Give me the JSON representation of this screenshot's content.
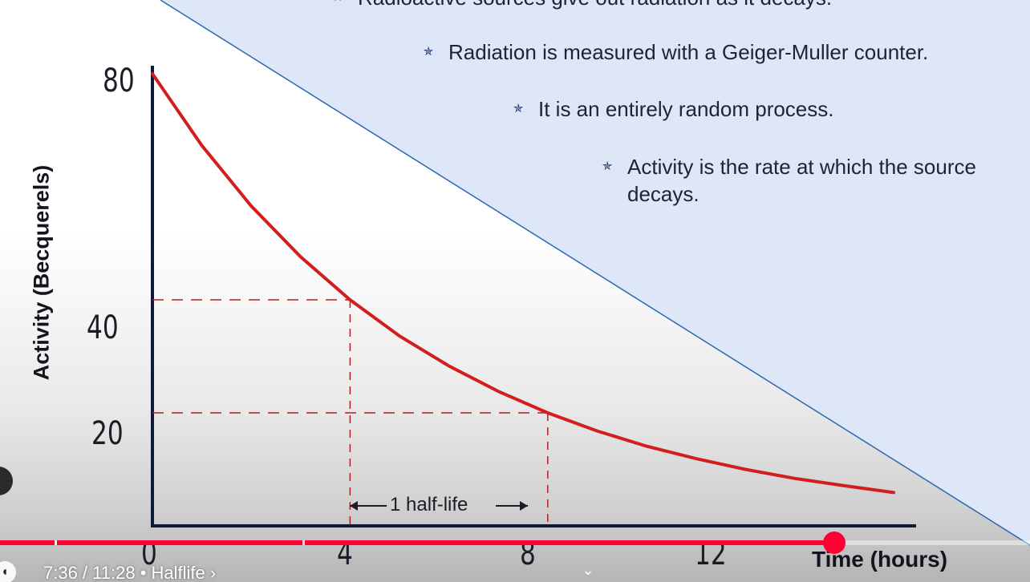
{
  "slide": {
    "bullets": [
      "Radioactive sources give out radiation as it decays.",
      "Radiation is measured with a Geiger-Muller counter.",
      "It is an entirely random process.",
      "Activity is the rate at which the source\ndecays."
    ],
    "bullet_icon": "star-bullet-icon",
    "half_life_label": "1 half-life",
    "colors": {
      "curve": "#d21e1e",
      "axes": "#0f1a3a",
      "guide": "#b02020",
      "panel": "#dde7f8",
      "diagonal": "#2a67b0"
    }
  },
  "chart_data": {
    "type": "line",
    "xlabel": "Time (hours)",
    "ylabel": "Activity (Becquerels)",
    "x_ticks": [
      "0",
      "4",
      "8",
      "12"
    ],
    "y_ticks": [
      "80",
      "40",
      "20"
    ],
    "xlim": [
      0,
      15
    ],
    "ylim": [
      0,
      80
    ],
    "series": [
      {
        "x": [
          0,
          1,
          2,
          3,
          4,
          5,
          6,
          7,
          8,
          9,
          10,
          11,
          12,
          13,
          14,
          15
        ],
        "values": [
          80,
          67.3,
          56.6,
          47.6,
          40,
          33.6,
          28.3,
          23.8,
          20,
          16.8,
          14.1,
          11.9,
          10,
          8.4,
          7.1,
          5.9
        ]
      }
    ],
    "guides": [
      {
        "x": 4,
        "y": 40
      },
      {
        "x": 8,
        "y": 20
      }
    ]
  },
  "player": {
    "time_display": "7:36 / 11:28 • Halflife ›",
    "progress": 0.81,
    "volume_icon": "volume-icon",
    "expand_icon": "chevron-down-icon",
    "accent": "#ff0033"
  }
}
